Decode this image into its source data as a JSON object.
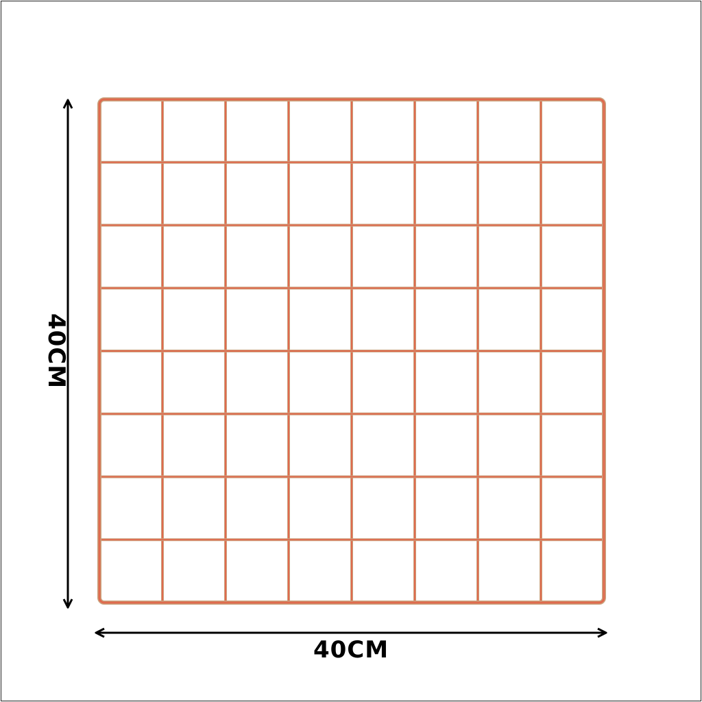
{
  "dimensions": {
    "width_label": "40CM",
    "height_label": "40CM"
  },
  "grid": {
    "rows": 8,
    "columns": 8
  },
  "colors": {
    "wire": "#e06a4e",
    "wire_highlight": "#c9a27e",
    "arrow": "#000000"
  }
}
